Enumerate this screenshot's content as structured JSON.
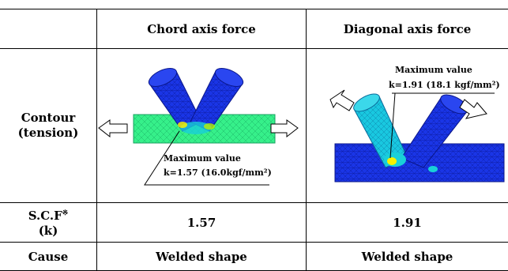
{
  "table": {
    "headers": [
      "",
      "Chord axis force",
      "Diagonal axis force"
    ],
    "rows": {
      "contour": {
        "label_line1": "Contour",
        "label_line2": "(tension)"
      },
      "scf": {
        "label_line1": "S.C.F",
        "label_mark": "※",
        "label_line2": "(k)",
        "chord": "1.57",
        "diagonal": "1.91"
      },
      "cause": {
        "label": "Cause",
        "chord": "Welded shape",
        "diagonal": "Welded shape"
      }
    }
  },
  "annotations": {
    "chord": {
      "line1": "Maximum value",
      "line2": "k=1.57 (16.0kgf/mm²)"
    },
    "diagonal": {
      "line1": "Maximum value",
      "line2": "k=1.91 (18.1 kgf/mm²)"
    }
  },
  "colors": {
    "mesh_blue": "#1a2fe0",
    "mesh_green": "#2ef07a",
    "mesh_cyan": "#19d0d8",
    "mesh_yellow": "#f5f000"
  }
}
